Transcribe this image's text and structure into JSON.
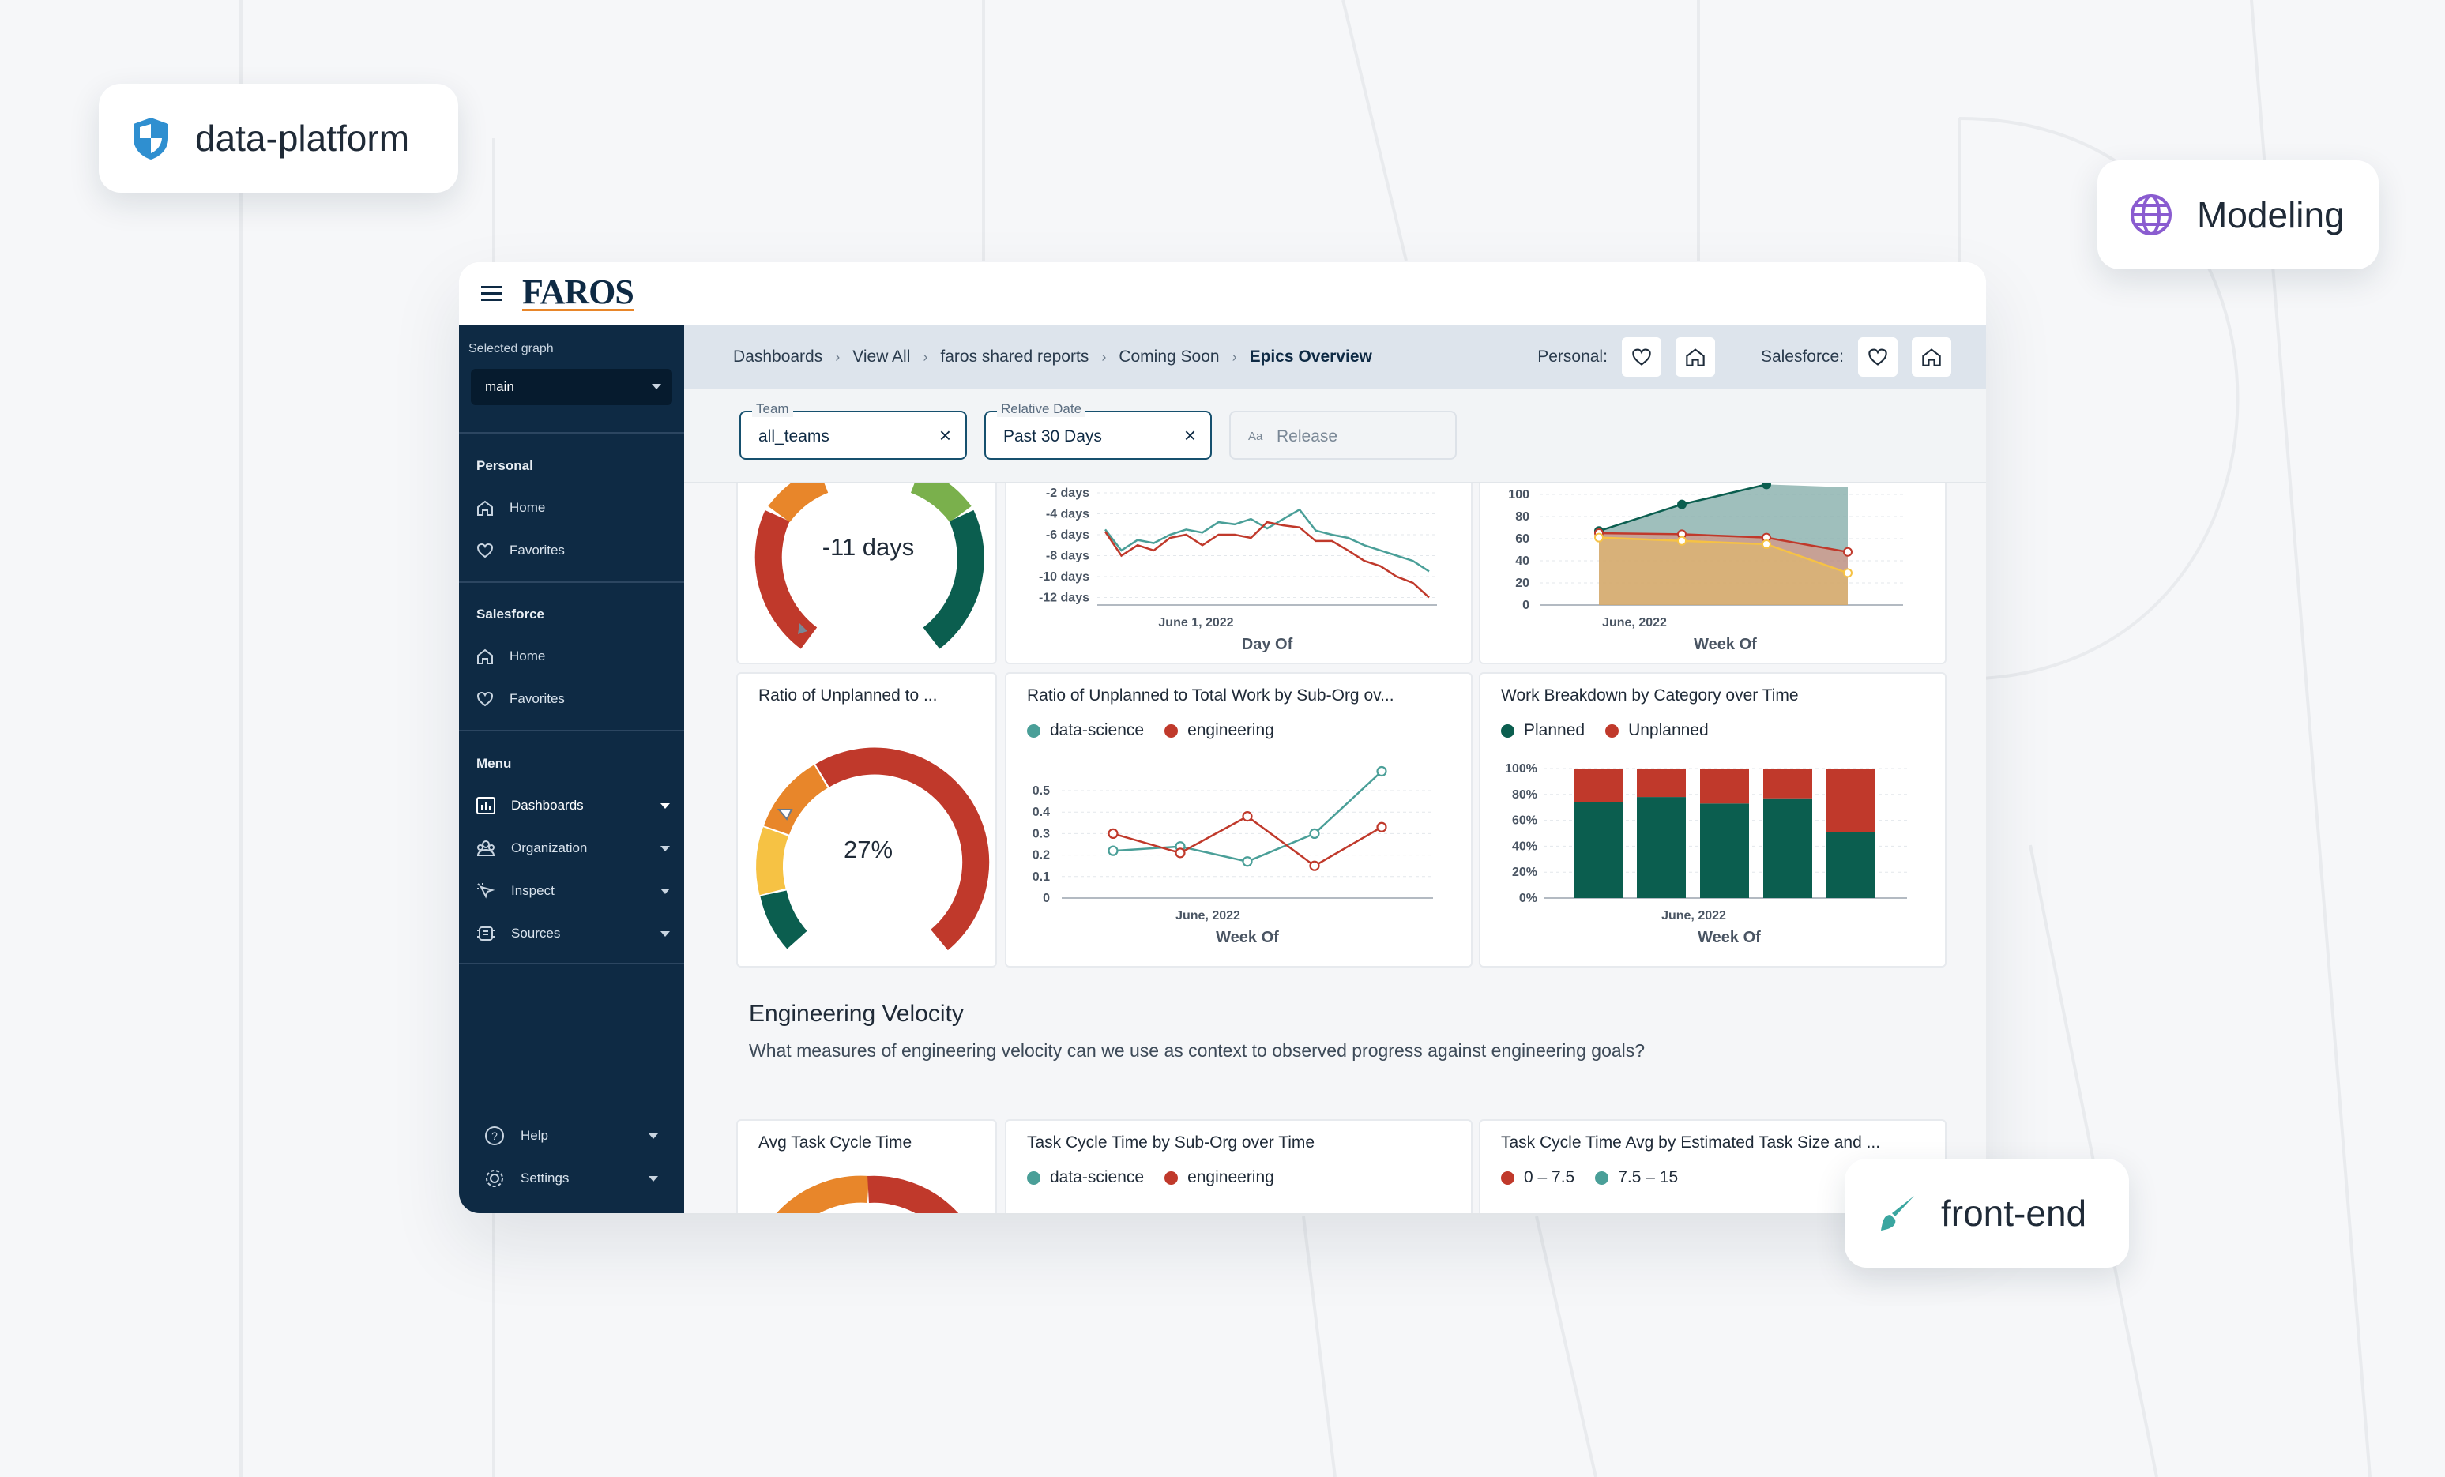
{
  "tags": {
    "data_platform": "data-platform",
    "modeling": "Modeling",
    "front_end": "front-end"
  },
  "app": {
    "logo": "FAROS"
  },
  "sidebar": {
    "graph_label": "Selected graph",
    "graph_value": "main",
    "personal_head": "Personal",
    "personal_items": [
      "Home",
      "Favorites"
    ],
    "salesforce_head": "Salesforce",
    "salesforce_items": [
      "Home",
      "Favorites"
    ],
    "menu_head": "Menu",
    "menu_items": [
      "Dashboards",
      "Organization",
      "Inspect",
      "Sources"
    ],
    "help": "Help",
    "settings": "Settings"
  },
  "breadcrumbs": [
    "Dashboards",
    "View All",
    "faros shared reports",
    "Coming Soon",
    "Epics Overview"
  ],
  "header_actions": {
    "personal": "Personal:",
    "salesforce": "Salesforce:"
  },
  "filters": {
    "team_label": "Team",
    "team_value": "all_teams",
    "date_label": "Relative Date",
    "date_value": "Past 30 Days",
    "release_prefix": "Aa",
    "release_placeholder": "Release"
  },
  "cards": {
    "gauge1_value": "-11 days",
    "gauge2_title": "Ratio of Unplanned to ...",
    "gauge2_value": "27%",
    "line1_xlabel": "Day Of",
    "line1_tick": "June 1, 2022",
    "line1_yticks": [
      "-2 days",
      "-4 days",
      "-6 days",
      "-8 days",
      "-10 days",
      "-12 days"
    ],
    "area_xlabel": "Week Of",
    "area_tick": "June, 2022",
    "area_yticks": [
      "100",
      "80",
      "60",
      "40",
      "20",
      "0"
    ],
    "ratio_title": "Ratio of Unplanned to Total Work by Sub-Org ov...",
    "ratio_legend": [
      "data-science",
      "engineering"
    ],
    "ratio_tick": "June, 2022",
    "ratio_xlabel": "Week Of",
    "ratio_yticks": [
      "0.5",
      "0.4",
      "0.3",
      "0.2",
      "0.1",
      "0"
    ],
    "work_title": "Work Breakdown by Category over Time",
    "work_legend": [
      "Planned",
      "Unplanned"
    ],
    "work_tick": "June, 2022",
    "work_xlabel": "Week Of",
    "work_yticks": [
      "100%",
      "80%",
      "60%",
      "40%",
      "20%",
      "0%"
    ]
  },
  "section": {
    "title": "Engineering Velocity",
    "desc": "What measures of engineering velocity can we use as context to observed progress against engineering goals?"
  },
  "bottom_cards": {
    "c1_title": "Avg Task Cycle Time",
    "c2_title": "Task Cycle Time by Sub-Org over Time",
    "c2_legend": [
      "data-science",
      "engineering"
    ],
    "c3_title": "Task Cycle Time Avg by Estimated Task Size and ...",
    "c3_legend": [
      "0 – 7.5",
      "7.5 – 15"
    ]
  },
  "colors": {
    "navy": "#0e2a44",
    "red": "#c0392b",
    "teal": "#4a9f98",
    "green": "#0b5e4f",
    "orange": "#e8862a",
    "yellow": "#f6c244",
    "lightgreen": "#7ab04c",
    "tan": "#d4a86a"
  },
  "chart_data": [
    {
      "type": "line",
      "xlabel": "Day Of",
      "ylim": [
        -12,
        -2
      ],
      "series": [
        {
          "values": [
            -5.5,
            -7.5,
            -6.5,
            -6.8,
            -6,
            -5.5,
            -5.8,
            -4.8,
            -5,
            -4.5,
            -5.4,
            -4.5,
            -3.6,
            -5.6,
            -6,
            -6.3,
            -7,
            -7.5,
            -8,
            -8.5,
            -9.5
          ]
        },
        {
          "values": [
            -5.7,
            -8,
            -7,
            -7.5,
            -6.3,
            -6,
            -7,
            -6,
            -6,
            -6.3,
            -4.8,
            -5.1,
            -5.3,
            -6.6,
            -6.6,
            -7.5,
            -8.5,
            -9,
            -10,
            -10.6,
            -12
          ]
        }
      ]
    },
    {
      "type": "area",
      "xlabel": "Week Of",
      "ylim": [
        0,
        100
      ],
      "series": [
        {
          "values": [
            67,
            91,
            109
          ]
        },
        {
          "values": [
            65,
            64,
            61,
            48
          ]
        },
        {
          "values": [
            61,
            58,
            55,
            29
          ]
        }
      ]
    },
    {
      "type": "line",
      "title": "Ratio of Unplanned to Total Work by Sub-Org ov...",
      "xlabel": "Week Of",
      "ylim": [
        0,
        0.5
      ],
      "series": [
        {
          "name": "data-science",
          "values": [
            0.22,
            0.24,
            0.17,
            0.3,
            0.59
          ]
        },
        {
          "name": "engineering",
          "values": [
            0.3,
            0.21,
            0.38,
            0.15,
            0.33
          ]
        }
      ]
    },
    {
      "type": "bar",
      "title": "Work Breakdown by Category over Time",
      "xlabel": "Week Of",
      "ylim": [
        0,
        100
      ],
      "series": [
        {
          "name": "Planned",
          "values": [
            74,
            78,
            73,
            77,
            51
          ]
        },
        {
          "name": "Unplanned",
          "values": [
            26,
            22,
            27,
            23,
            49
          ]
        }
      ]
    }
  ]
}
